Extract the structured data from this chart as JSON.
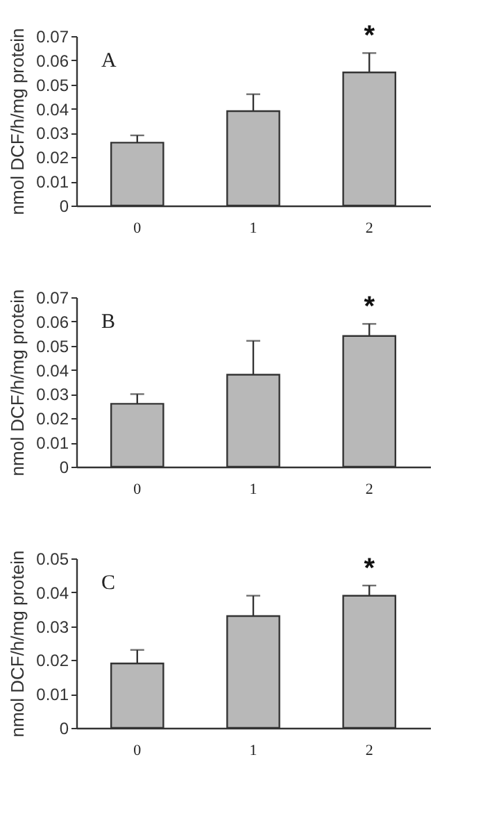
{
  "chart_data": [
    {
      "type": "bar",
      "ylabel": "nmol DCF/h/mg protein",
      "categories": [
        "0",
        "1",
        "2"
      ],
      "color": "#b8b8b8",
      "values": [
        0.026,
        0.039,
        0.055
      ],
      "errors": [
        [
          0.026,
          0.029
        ],
        [
          0.039,
          0.046
        ],
        [
          0.055,
          0.063
        ]
      ],
      "ylim": [
        0,
        0.07
      ],
      "yticks": [
        0,
        0.01,
        0.02,
        0.03,
        0.04,
        0.05,
        0.06,
        0.07
      ],
      "annotations": [
        "A",
        {
          "text": "*",
          "x": "2",
          "y": 0.063
        }
      ]
    },
    {
      "type": "bar",
      "ylabel": "nmol DCF/h/mg protein",
      "categories": [
        "0",
        "1",
        "2"
      ],
      "color": "#b8b8b8",
      "values": [
        0.026,
        0.038,
        0.054
      ],
      "errors": [
        [
          0.026,
          0.03
        ],
        [
          0.038,
          0.052
        ],
        [
          0.054,
          0.059
        ]
      ],
      "ylim": [
        0,
        0.07
      ],
      "yticks": [
        0,
        0.01,
        0.02,
        0.03,
        0.04,
        0.05,
        0.06,
        0.07
      ],
      "annotations": [
        "B",
        {
          "text": "*",
          "x": "2",
          "y": 0.059
        }
      ]
    },
    {
      "type": "bar",
      "ylabel": "nmol DCF/h/mg protein",
      "categories": [
        "0",
        "1",
        "2"
      ],
      "color": "#b8b8b8",
      "values": [
        0.019,
        0.033,
        0.039
      ],
      "errors": [
        [
          0.019,
          0.023
        ],
        [
          0.033,
          0.039
        ],
        [
          0.039,
          0.042
        ]
      ],
      "ylim": [
        0,
        0.05
      ],
      "yticks": [
        0,
        0.01,
        0.02,
        0.03,
        0.04,
        0.05
      ],
      "annotations": [
        "C",
        {
          "text": "*",
          "x": "2",
          "y": 0.042
        }
      ]
    }
  ]
}
